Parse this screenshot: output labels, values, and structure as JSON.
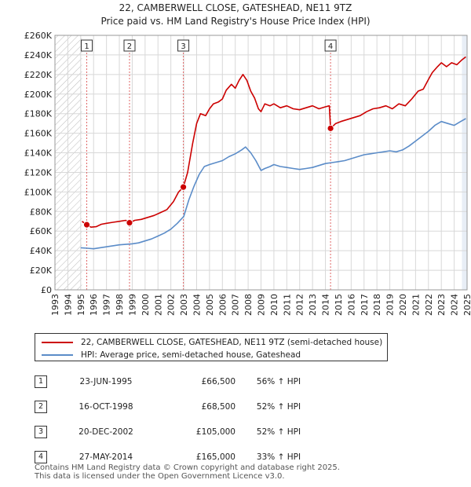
{
  "title_line1": "22, CAMBERWELL CLOSE, GATESHEAD, NE11 9TZ",
  "title_line2": "Price paid vs. HM Land Registry's House Price Index (HPI)",
  "legend": {
    "property_label": "22, CAMBERWELL CLOSE, GATESHEAD, NE11 9TZ (semi-detached house)",
    "hpi_label": "HPI: Average price, semi-detached house, Gateshead"
  },
  "sales": [
    {
      "num": "1",
      "date": "23-JUN-1995",
      "price": "£66,500",
      "hpi": "56% ↑ HPI"
    },
    {
      "num": "2",
      "date": "16-OCT-1998",
      "price": "£68,500",
      "hpi": "52% ↑ HPI"
    },
    {
      "num": "3",
      "date": "20-DEC-2002",
      "price": "£105,000",
      "hpi": "52% ↑ HPI"
    },
    {
      "num": "4",
      "date": "27-MAY-2014",
      "price": "£165,000",
      "hpi": "33% ↑ HPI"
    }
  ],
  "footer": {
    "line1": "Contains HM Land Registry data © Crown copyright and database right 2025.",
    "line2": "This data is licensed under the Open Government Licence v3.0."
  },
  "colors": {
    "property": "#cc0000",
    "hpi": "#5b8cc8",
    "grid": "#d8d8d8",
    "shade": "#e8eef6",
    "hatch": "#bbbbbb"
  },
  "chart_data": {
    "type": "line",
    "xlim": [
      1993,
      2025
    ],
    "ylim": [
      0,
      260000
    ],
    "x_ticks": [
      1993,
      1994,
      1995,
      1996,
      1997,
      1998,
      1999,
      2000,
      2001,
      2002,
      2003,
      2004,
      2005,
      2006,
      2007,
      2008,
      2009,
      2010,
      2011,
      2012,
      2013,
      2014,
      2015,
      2016,
      2017,
      2018,
      2019,
      2020,
      2021,
      2022,
      2023,
      2024,
      2025
    ],
    "y_ticks": [
      {
        "value": 0,
        "label": "£0"
      },
      {
        "value": 20000,
        "label": "£20K"
      },
      {
        "value": 40000,
        "label": "£40K"
      },
      {
        "value": 60000,
        "label": "£60K"
      },
      {
        "value": 80000,
        "label": "£80K"
      },
      {
        "value": 100000,
        "label": "£100K"
      },
      {
        "value": 120000,
        "label": "£120K"
      },
      {
        "value": 140000,
        "label": "£140K"
      },
      {
        "value": 160000,
        "label": "£160K"
      },
      {
        "value": 180000,
        "label": "£180K"
      },
      {
        "value": 200000,
        "label": "£200K"
      },
      {
        "value": 220000,
        "label": "£220K"
      },
      {
        "value": 240000,
        "label": "£240K"
      },
      {
        "value": 260000,
        "label": "£260K"
      }
    ],
    "hatched_range": [
      1993,
      1995.1
    ],
    "shade_start": 2024.6,
    "sale_markers": [
      {
        "label": "1",
        "x": 1995.47,
        "y": 66500
      },
      {
        "label": "2",
        "x": 1998.79,
        "y": 68500
      },
      {
        "label": "3",
        "x": 2002.97,
        "y": 105000
      },
      {
        "label": "4",
        "x": 2014.4,
        "y": 165000
      }
    ],
    "series": [
      {
        "name": "22, CAMBERWELL CLOSE, GATESHEAD, NE11 9TZ (semi-detached house)",
        "x": [
          1995.1,
          1995.47,
          1995.8,
          1996.2,
          1996.6,
          1997.0,
          1997.5,
          1998.0,
          1998.5,
          1998.79,
          1999.2,
          1999.7,
          2000.2,
          2000.7,
          2001.2,
          2001.7,
          2002.2,
          2002.6,
          2002.97,
          2003.3,
          2003.7,
          2004.0,
          2004.3,
          2004.7,
          2005.0,
          2005.3,
          2005.7,
          2006.0,
          2006.3,
          2006.7,
          2007.0,
          2007.3,
          2007.6,
          2007.9,
          2008.2,
          2008.5,
          2008.8,
          2009.0,
          2009.3,
          2009.7,
          2010.0,
          2010.5,
          2011.0,
          2011.5,
          2012.0,
          2012.5,
          2013.0,
          2013.5,
          2014.0,
          2014.3,
          2014.4,
          2014.8,
          2015.2,
          2015.7,
          2016.2,
          2016.7,
          2017.2,
          2017.7,
          2018.2,
          2018.7,
          2019.2,
          2019.7,
          2020.2,
          2020.7,
          2021.2,
          2021.6,
          2022.0,
          2022.3,
          2022.7,
          2023.0,
          2023.4,
          2023.8,
          2024.2,
          2024.6,
          2024.9
        ],
        "y": [
          70000,
          66500,
          64000,
          64500,
          67000,
          68000,
          69000,
          70000,
          71000,
          68500,
          71000,
          72000,
          74000,
          76000,
          79000,
          82000,
          90000,
          100000,
          105000,
          120000,
          150000,
          170000,
          180000,
          178000,
          185000,
          190000,
          192000,
          195000,
          204000,
          210000,
          206000,
          214000,
          220000,
          214000,
          203000,
          196000,
          185000,
          182000,
          190000,
          188000,
          190000,
          186000,
          188000,
          185000,
          184000,
          186000,
          188000,
          185000,
          187000,
          188000,
          165000,
          170000,
          172000,
          174000,
          176000,
          178000,
          182000,
          185000,
          186000,
          188000,
          185000,
          190000,
          188000,
          195000,
          203000,
          205000,
          215000,
          222000,
          228000,
          232000,
          228000,
          232000,
          230000,
          235000,
          238000
        ]
      },
      {
        "name": "HPI: Average price, semi-detached house, Gateshead",
        "x": [
          1995.0,
          1995.5,
          1996.0,
          1996.5,
          1997.0,
          1997.5,
          1998.0,
          1998.5,
          1999.0,
          1999.5,
          2000.0,
          2000.5,
          2001.0,
          2001.5,
          2002.0,
          2002.5,
          2003.0,
          2003.4,
          2003.8,
          2004.2,
          2004.6,
          2005.0,
          2005.5,
          2006.0,
          2006.5,
          2007.0,
          2007.5,
          2007.8,
          2008.2,
          2008.6,
          2009.0,
          2009.3,
          2009.7,
          2010.0,
          2010.5,
          2011.0,
          2011.5,
          2012.0,
          2012.5,
          2013.0,
          2013.5,
          2014.0,
          2014.5,
          2015.0,
          2015.5,
          2016.0,
          2016.5,
          2017.0,
          2017.5,
          2018.0,
          2018.5,
          2019.0,
          2019.5,
          2020.0,
          2020.5,
          2021.0,
          2021.5,
          2022.0,
          2022.5,
          2023.0,
          2023.5,
          2024.0,
          2024.5,
          2024.9
        ],
        "y": [
          43000,
          42500,
          42000,
          43000,
          44000,
          45000,
          46000,
          46500,
          47000,
          48000,
          50000,
          52000,
          55000,
          58000,
          62000,
          68000,
          75000,
          92000,
          106000,
          118000,
          126000,
          128000,
          130000,
          132000,
          136000,
          139000,
          143000,
          146000,
          140000,
          132000,
          122000,
          124000,
          126000,
          128000,
          126000,
          125000,
          124000,
          123000,
          124000,
          125000,
          127000,
          129000,
          130000,
          131000,
          132000,
          134000,
          136000,
          138000,
          139000,
          140000,
          141000,
          142000,
          141000,
          143000,
          147000,
          152000,
          157000,
          162000,
          168000,
          172000,
          170000,
          168000,
          172000,
          175000
        ]
      }
    ]
  }
}
